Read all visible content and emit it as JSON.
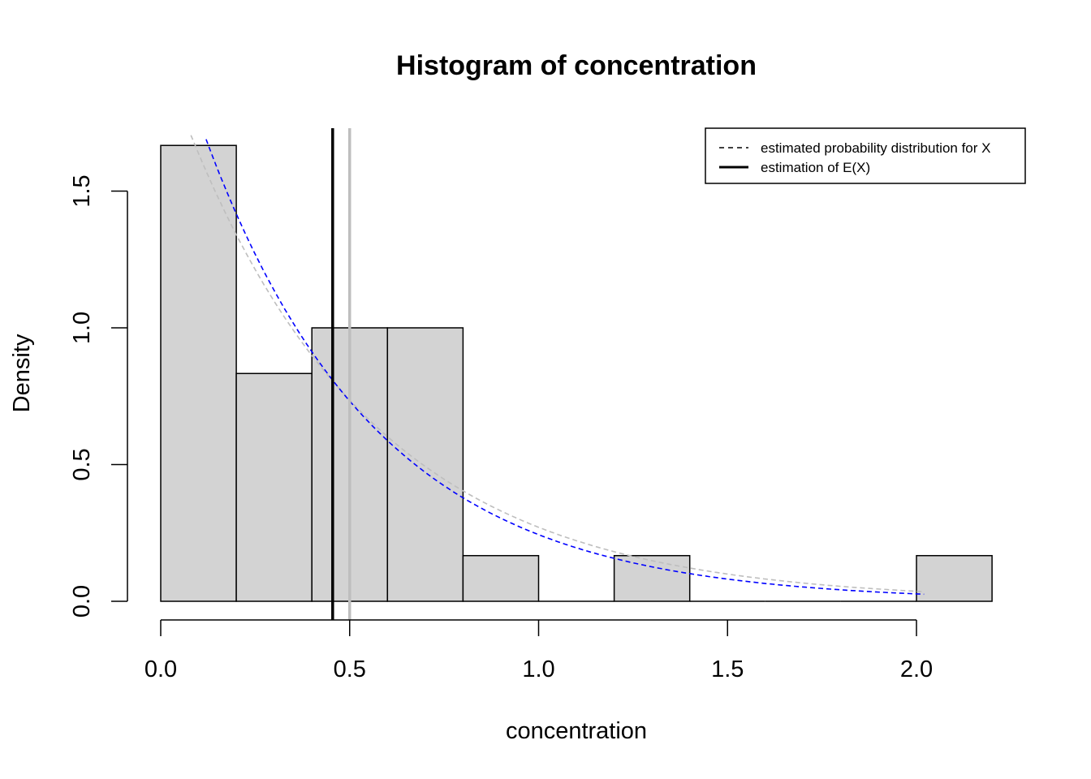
{
  "chart_data": {
    "type": "bar",
    "title": "Histogram of concentration",
    "xlabel": "concentration",
    "ylabel": "Density",
    "xlim": [
      0.0,
      2.2
    ],
    "ylim": [
      0.0,
      1.73
    ],
    "x_ticks": [
      {
        "value": 0.0,
        "label": "0.0"
      },
      {
        "value": 0.5,
        "label": "0.5"
      },
      {
        "value": 1.0,
        "label": "1.0"
      },
      {
        "value": 1.5,
        "label": "1.5"
      },
      {
        "value": 2.0,
        "label": "2.0"
      }
    ],
    "y_ticks": [
      {
        "value": 0.0,
        "label": "0.0"
      },
      {
        "value": 0.5,
        "label": "0.5"
      },
      {
        "value": 1.0,
        "label": "1.0"
      },
      {
        "value": 1.5,
        "label": "1.5"
      }
    ],
    "bins": [
      {
        "start": 0.0,
        "end": 0.2,
        "density": 1.667
      },
      {
        "start": 0.2,
        "end": 0.4,
        "density": 0.833
      },
      {
        "start": 0.4,
        "end": 0.6,
        "density": 1.0
      },
      {
        "start": 0.6,
        "end": 0.8,
        "density": 1.0
      },
      {
        "start": 0.8,
        "end": 1.0,
        "density": 0.167
      },
      {
        "start": 1.0,
        "end": 1.2,
        "density": 0.0
      },
      {
        "start": 1.2,
        "end": 1.4,
        "density": 0.167
      },
      {
        "start": 1.4,
        "end": 1.6,
        "density": 0.0
      },
      {
        "start": 1.6,
        "end": 1.8,
        "density": 0.0
      },
      {
        "start": 1.8,
        "end": 2.0,
        "density": 0.0
      },
      {
        "start": 2.0,
        "end": 2.2,
        "density": 0.167
      }
    ],
    "curves": [
      {
        "color": "#0000ff",
        "style": "dashed",
        "x_range": [
          0.12,
          2.02
        ],
        "rate": 2.2
      },
      {
        "color": "#bebebe",
        "style": "dashed",
        "x_range": [
          0.08,
          2.02
        ],
        "rate": 2.0
      }
    ],
    "vlines": [
      {
        "x": 0.5,
        "color": "#bebebe",
        "style": "solid"
      },
      {
        "x": 0.455,
        "color": "#000000",
        "style": "solid"
      }
    ],
    "bar_fill": "#d3d3d3",
    "legend": {
      "position": "top-right",
      "entries": [
        {
          "label": "estimated probability distribution for X",
          "style": "dashed",
          "color": "#000000"
        },
        {
          "label": "estimation of E(X)",
          "style": "solid",
          "color": "#000000"
        }
      ]
    }
  }
}
